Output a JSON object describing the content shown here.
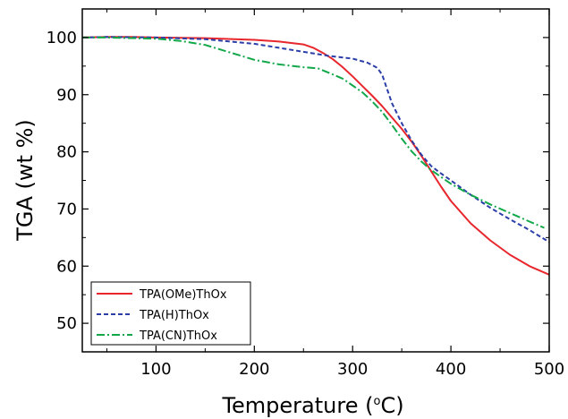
{
  "chart_data": {
    "type": "line",
    "xlabel": "Temperature (",
    "xlabel_sup": "o",
    "xlabel_unit": "C)",
    "ylabel": "TGA (wt %)",
    "xlim": [
      25,
      500
    ],
    "ylim": [
      45,
      105
    ],
    "x_ticks": [
      100,
      200,
      300,
      400,
      500
    ],
    "x_tick_labels": [
      "100",
      "200",
      "300",
      "400",
      "500"
    ],
    "y_ticks": [
      50,
      60,
      70,
      80,
      90,
      100
    ],
    "y_tick_labels": [
      "50",
      "60",
      "70",
      "80",
      "90",
      "100"
    ],
    "grid": false,
    "legend_position": "bottom-left",
    "series": [
      {
        "name": "TPA(OMe)ThOx",
        "color": "#e8272d",
        "style": "solid",
        "x": [
          25,
          50,
          75,
          100,
          150,
          200,
          225,
          250,
          260,
          270,
          280,
          290,
          300,
          310,
          320,
          330,
          340,
          350,
          360,
          370,
          380,
          390,
          400,
          420,
          440,
          460,
          480,
          500
        ],
        "y": [
          100,
          100.1,
          100.1,
          100,
          99.9,
          99.6,
          99.3,
          98.8,
          98.2,
          97.3,
          96.2,
          94.8,
          93.2,
          91.5,
          89.8,
          88,
          86,
          84,
          81.8,
          79.3,
          76.6,
          73.9,
          71.4,
          67.5,
          64.5,
          62,
          60,
          58.5
        ]
      },
      {
        "name": "TPA(H)ThOx",
        "color": "#2b3ea8",
        "style": "dashed",
        "x": [
          25,
          50,
          100,
          150,
          200,
          225,
          250,
          275,
          300,
          315,
          325,
          330,
          335,
          340,
          350,
          360,
          370,
          380,
          390,
          400,
          420,
          440,
          460,
          480,
          500
        ],
        "y": [
          100,
          100.1,
          100,
          99.7,
          98.9,
          98.2,
          97.5,
          96.8,
          96.3,
          95.6,
          94.7,
          93.5,
          91,
          88.5,
          85,
          82,
          79.5,
          77.5,
          76.2,
          75,
          72.5,
          70.2,
          68.2,
          66.3,
          64.2
        ]
      },
      {
        "name": "TPA(CN)ThOx",
        "color": "#12a84a",
        "style": "dashdot",
        "x": [
          25,
          50,
          100,
          125,
          150,
          175,
          200,
          225,
          250,
          265,
          275,
          290,
          300,
          310,
          320,
          330,
          340,
          350,
          360,
          370,
          380,
          390,
          400,
          420,
          440,
          460,
          480,
          495
        ],
        "y": [
          100,
          100,
          99.8,
          99.4,
          98.7,
          97.4,
          96.1,
          95.3,
          94.8,
          94.6,
          93.9,
          92.8,
          91.6,
          90.4,
          88.8,
          87,
          84.7,
          82.3,
          80.1,
          78.3,
          76.8,
          75.6,
          74.4,
          72.5,
          70.8,
          69.3,
          67.8,
          66.7
        ]
      }
    ]
  }
}
